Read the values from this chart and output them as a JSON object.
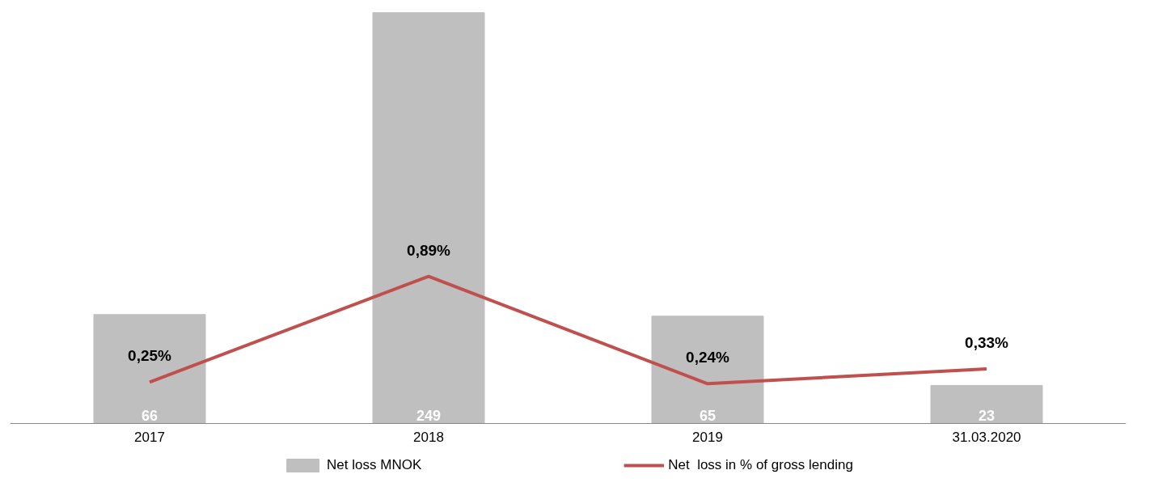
{
  "chart_data": {
    "type": "bar",
    "categories": [
      "2017",
      "2018",
      "2019",
      "31.03.2020"
    ],
    "series": [
      {
        "name": "Net loss MNOK",
        "color": "#bfbfbf",
        "values": [
          66,
          249,
          65,
          23
        ]
      },
      {
        "name": "Net  loss in % of gross lending",
        "type": "line",
        "axis": "y2",
        "color": "#c0504d",
        "values": [
          0.25,
          0.89,
          0.24,
          0.33
        ],
        "value_labels": [
          "0,25%",
          "0,89%",
          "0,24%",
          "0,33%"
        ]
      }
    ],
    "data_labels": true,
    "grid": false,
    "legend": "bottom",
    "tick_labels": "x",
    "marker": "none",
    "line_style": "solid"
  }
}
